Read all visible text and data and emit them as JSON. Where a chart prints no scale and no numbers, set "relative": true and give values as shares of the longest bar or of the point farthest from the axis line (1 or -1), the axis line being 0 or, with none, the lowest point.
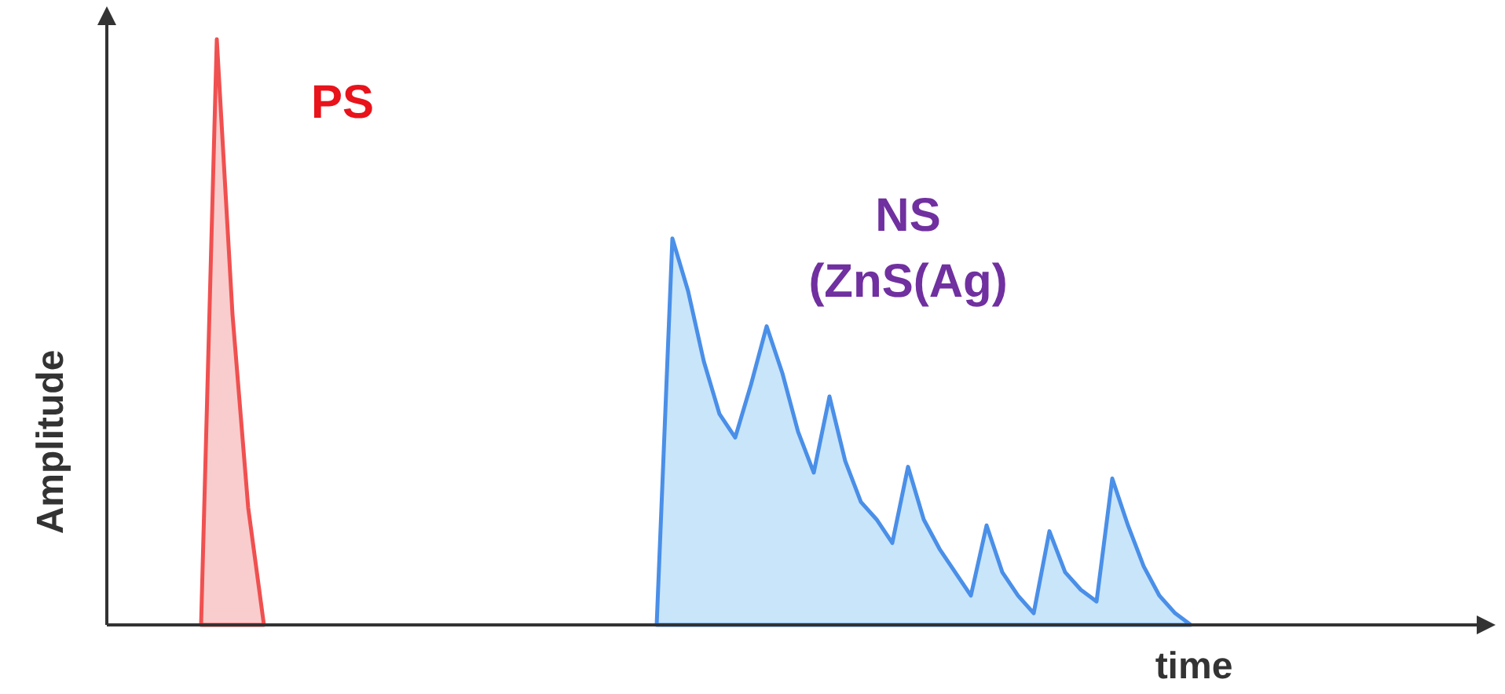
{
  "chart_data": {
    "type": "area",
    "relative": true,
    "xlabel": "time",
    "ylabel": "Amplitude",
    "categories": [
      null,
      null,
      null,
      null,
      null,
      null,
      null,
      null,
      null,
      null,
      null,
      null,
      null,
      null,
      null,
      null,
      null,
      null,
      null,
      null,
      null,
      null,
      null,
      null,
      null,
      null,
      null,
      null,
      null,
      null,
      null,
      null,
      null,
      null,
      null,
      null,
      null,
      null,
      null,
      null,
      null,
      null,
      null,
      null,
      null,
      null,
      null,
      null,
      null,
      null,
      null,
      null,
      null,
      null,
      null,
      null,
      null,
      null,
      null,
      null,
      null,
      null,
      null,
      null,
      null,
      null,
      null,
      null,
      null,
      null,
      null,
      null,
      null,
      null,
      null,
      null,
      null,
      null,
      null,
      null,
      null,
      null,
      null,
      null,
      null,
      null,
      null,
      null,
      null
    ],
    "series": [
      {
        "name": "PS",
        "color": "#f05050",
        "values": [
          null,
          null,
          null,
          null,
          null,
          null,
          0,
          1,
          0.53,
          0.2,
          0,
          null,
          null,
          null,
          null,
          null,
          null,
          null,
          null,
          null,
          null,
          null,
          null,
          null,
          null,
          null,
          null,
          null,
          null,
          null,
          null,
          null,
          null,
          null,
          null,
          null,
          null,
          null,
          null,
          null,
          null,
          null,
          null,
          null,
          null,
          null,
          null,
          null,
          null,
          null,
          null,
          null,
          null,
          null,
          null,
          null,
          null,
          null,
          null,
          null,
          null,
          null,
          null,
          null,
          null,
          null,
          null,
          null,
          null,
          null,
          null,
          null,
          null,
          null,
          null,
          null,
          null,
          null,
          null,
          null,
          null,
          null,
          null,
          null,
          null,
          null,
          null,
          null,
          null
        ]
      },
      {
        "name": "NS (ZnS(Ag)",
        "color": "#4a8fe8",
        "values": [
          null,
          null,
          null,
          null,
          null,
          null,
          null,
          null,
          null,
          null,
          null,
          null,
          null,
          null,
          null,
          null,
          null,
          null,
          null,
          null,
          null,
          null,
          null,
          null,
          null,
          null,
          null,
          null,
          null,
          null,
          null,
          null,
          null,
          null,
          null,
          0,
          0.66,
          0.57,
          0.45,
          0.36,
          0.32,
          0.41,
          0.51,
          0.43,
          0.33,
          0.26,
          0.39,
          0.28,
          0.21,
          0.18,
          0.14,
          0.27,
          0.18,
          0.13,
          0.09,
          0.05,
          0.17,
          0.09,
          0.05,
          0.02,
          0.16,
          0.09,
          0.06,
          0.04,
          0.25,
          0.17,
          0.1,
          0.05,
          0.02,
          0,
          null,
          null,
          null,
          null,
          null,
          null,
          null,
          null,
          null,
          null,
          null,
          null,
          null,
          null,
          null,
          null,
          null,
          null,
          null
        ]
      }
    ]
  }
}
